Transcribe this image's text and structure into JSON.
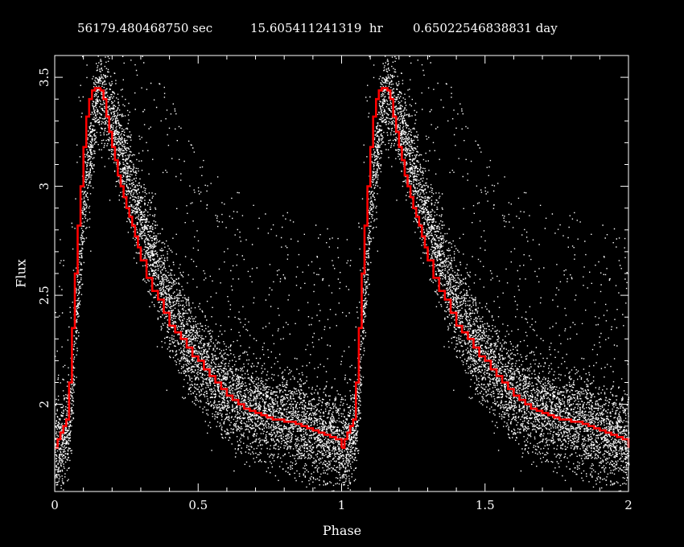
{
  "header": {
    "seconds": "56179.480468750 sec",
    "hours": "15.605411241319  hr",
    "days": "0.65022546838831 day"
  },
  "colors": {
    "background": "#000000",
    "points": "#ffffff",
    "binned_curve": "#ff0000",
    "axes": "#ffffff"
  },
  "chart_data": {
    "type": "scatter",
    "title": "56179.480468750 sec    15.605411241319  hr   0.65022546838831 day",
    "xlabel": "Phase",
    "ylabel": "Flux",
    "xlim": [
      0,
      2
    ],
    "ylim": [
      1.6,
      3.6
    ],
    "xticks": [
      0,
      0.5,
      1,
      1.5,
      2
    ],
    "xtick_labels": [
      "0",
      "0.5",
      "1",
      "1.5",
      "2"
    ],
    "yticks": [
      2,
      2.5,
      3,
      3.5
    ],
    "ytick_labels": [
      "2",
      "2.5",
      "3",
      "3.5"
    ],
    "grid": false,
    "series": [
      {
        "kind": "scatter",
        "description": "phase-folded photometric points (white dots), same light curve repeated for phase 0-1 and 1-2",
        "envelope_phase": [
          0.0,
          0.05,
          0.1,
          0.15,
          0.2,
          0.3,
          0.4,
          0.5,
          0.6,
          0.7,
          0.8,
          0.9,
          1.0
        ],
        "envelope_flux": [
          1.78,
          1.9,
          2.9,
          3.45,
          3.3,
          2.85,
          2.45,
          2.2,
          2.05,
          1.98,
          1.93,
          1.88,
          1.82
        ]
      },
      {
        "kind": "binned-step",
        "description": "binned mean light curve (red step line)",
        "phase": [
          0.0,
          0.01,
          0.02,
          0.03,
          0.04,
          0.05,
          0.06,
          0.07,
          0.08,
          0.09,
          0.1,
          0.11,
          0.12,
          0.13,
          0.14,
          0.15,
          0.16,
          0.17,
          0.18,
          0.19,
          0.2,
          0.21,
          0.22,
          0.23,
          0.24,
          0.25,
          0.26,
          0.27,
          0.28,
          0.29,
          0.3,
          0.32,
          0.34,
          0.36,
          0.38,
          0.4,
          0.42,
          0.44,
          0.46,
          0.48,
          0.5,
          0.52,
          0.54,
          0.56,
          0.58,
          0.6,
          0.62,
          0.64,
          0.66,
          0.68,
          0.7,
          0.72,
          0.74,
          0.76,
          0.78,
          0.8,
          0.82,
          0.84,
          0.86,
          0.88,
          0.9,
          0.92,
          0.94,
          0.96,
          0.98,
          1.0
        ],
        "flux": [
          1.8,
          1.84,
          1.87,
          1.9,
          1.93,
          2.1,
          2.35,
          2.6,
          2.82,
          3.0,
          3.18,
          3.32,
          3.4,
          3.44,
          3.45,
          3.45,
          3.44,
          3.4,
          3.32,
          3.25,
          3.18,
          3.12,
          3.05,
          3.0,
          2.95,
          2.9,
          2.86,
          2.82,
          2.77,
          2.72,
          2.66,
          2.58,
          2.52,
          2.48,
          2.42,
          2.36,
          2.33,
          2.3,
          2.26,
          2.22,
          2.2,
          2.16,
          2.13,
          2.1,
          2.07,
          2.04,
          2.02,
          2.0,
          1.98,
          1.97,
          1.96,
          1.95,
          1.94,
          1.93,
          1.93,
          1.92,
          1.92,
          1.91,
          1.9,
          1.89,
          1.88,
          1.87,
          1.86,
          1.85,
          1.84,
          1.8
        ]
      }
    ]
  }
}
